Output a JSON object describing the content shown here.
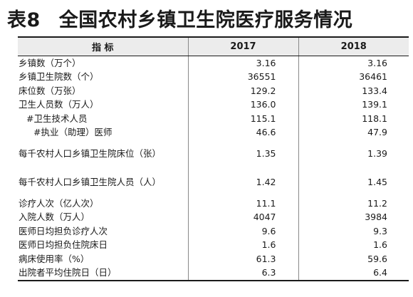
{
  "title": {
    "number": "表8",
    "text": "全国农村乡镇卫生院医疗服务情况"
  },
  "table": {
    "headers": {
      "indicator": "指  标",
      "year1": "2017",
      "year2": "2018"
    },
    "rows": [
      {
        "label": "乡镇数（万个）",
        "v2017": "3.16",
        "v2018": "3.16"
      },
      {
        "label": "乡镇卫生院数（个）",
        "v2017": "36551",
        "v2018": "36461"
      },
      {
        "label": "床位数（万张）",
        "v2017": "129.2",
        "v2018": "133.4"
      },
      {
        "label": "卫生人员数（万人）",
        "v2017": "136.0",
        "v2018": "139.1"
      },
      {
        "label": "#卫生技术人员",
        "v2017": "115.1",
        "v2018": "118.1"
      },
      {
        "label": "#执业（助理）医师",
        "v2017": "46.6",
        "v2018": "47.9"
      },
      {
        "label": "每千农村人口乡镇卫生院床位（张）",
        "v2017": "1.35",
        "v2018": "1.39"
      },
      {
        "label": "每千农村人口乡镇卫生院人员（人）",
        "v2017": "1.42",
        "v2018": "1.45"
      },
      {
        "label": "诊疗人次（亿人次）",
        "v2017": "11.1",
        "v2018": "11.2"
      },
      {
        "label": "入院人数（万人）",
        "v2017": "4047",
        "v2018": "3984"
      },
      {
        "label": "医师日均担负诊疗人次",
        "v2017": "9.6",
        "v2018": "9.3"
      },
      {
        "label": "医师日均担负住院床日",
        "v2017": "1.6",
        "v2018": "1.6"
      },
      {
        "label": "病床使用率（%）",
        "v2017": "61.3",
        "v2018": "59.6"
      },
      {
        "label": "出院者平均住院日（日）",
        "v2017": "6.3",
        "v2018": "6.4"
      }
    ]
  }
}
